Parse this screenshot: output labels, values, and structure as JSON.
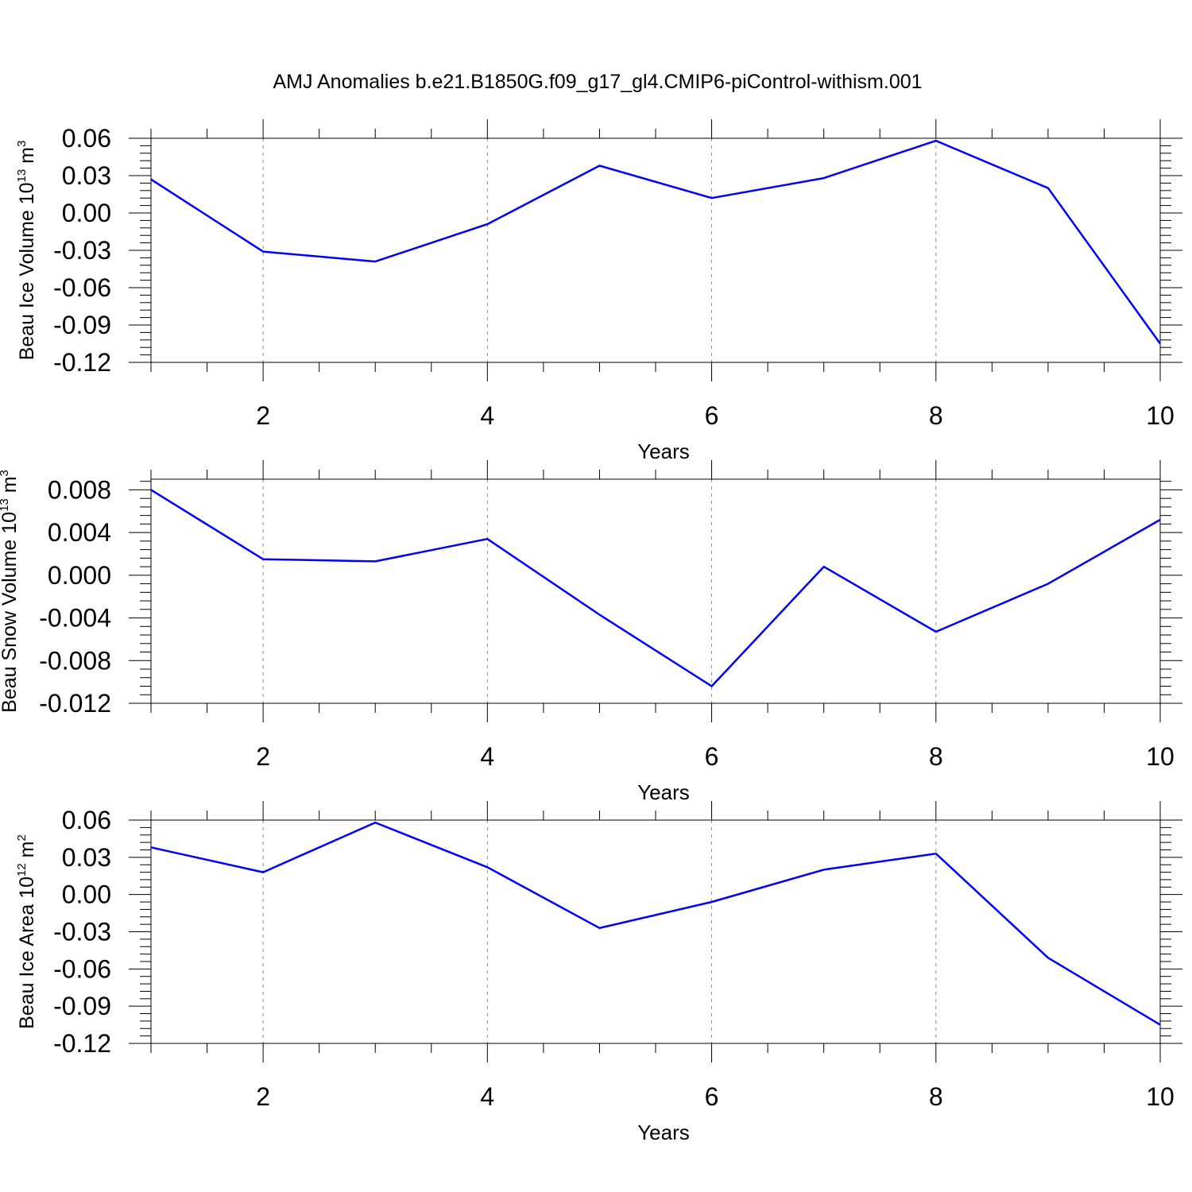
{
  "page": {
    "title": "AMJ Anomalies b.e21.B1850G.f09_g17_gl4.CMIP6-piControl-withism.001"
  },
  "colors": {
    "line": "#0000ff",
    "axis": "#000000",
    "grid": "#888888"
  },
  "chart_data": [
    {
      "type": "line",
      "xlabel": "Years",
      "ylabel": {
        "main": "Beau Ice Volume 10",
        "exp": "13",
        "unit": " m",
        "unit_exp": "3"
      },
      "xlim": [
        1,
        10
      ],
      "ylim": [
        -0.12,
        0.06
      ],
      "xticks": [
        2,
        4,
        6,
        8,
        10
      ],
      "yticks": [
        0.06,
        0.03,
        0.0,
        -0.03,
        -0.06,
        -0.09,
        -0.12
      ],
      "ytick_labels": [
        "0.06",
        "0.03",
        "0.00",
        "-0.03",
        "-0.06",
        "-0.09",
        "-0.12"
      ],
      "grid": "vertical dashed at major x ticks",
      "x": [
        1,
        2,
        3,
        4,
        5,
        6,
        7,
        8,
        9,
        10
      ],
      "values": [
        0.027,
        -0.031,
        -0.039,
        -0.009,
        0.038,
        0.012,
        0.028,
        0.058,
        0.02,
        -0.105
      ]
    },
    {
      "type": "line",
      "xlabel": "Years",
      "ylabel": {
        "main": "Beau Snow Volume 10",
        "exp": "13",
        "unit": " m",
        "unit_exp": "3"
      },
      "xlim": [
        1,
        10
      ],
      "ylim": [
        -0.012,
        0.009
      ],
      "xticks": [
        2,
        4,
        6,
        8,
        10
      ],
      "yticks": [
        0.008,
        0.004,
        0.0,
        -0.004,
        -0.008,
        -0.012
      ],
      "ytick_labels": [
        "0.008",
        "0.004",
        "0.000",
        "-0.004",
        "-0.008",
        "-0.012"
      ],
      "grid": "vertical dashed at major x ticks",
      "x": [
        1,
        2,
        3,
        4,
        5,
        6,
        7,
        8,
        9,
        10
      ],
      "values": [
        0.008,
        0.0015,
        0.0013,
        0.0034,
        -0.0037,
        -0.0104,
        0.0008,
        -0.0053,
        -0.0008,
        0.0052
      ]
    },
    {
      "type": "line",
      "xlabel": "Years",
      "ylabel": {
        "main": "Beau Ice Area 10",
        "exp": "12",
        "unit": " m",
        "unit_exp": "2"
      },
      "xlim": [
        1,
        10
      ],
      "ylim": [
        -0.12,
        0.06
      ],
      "xticks": [
        2,
        4,
        6,
        8,
        10
      ],
      "yticks": [
        0.06,
        0.03,
        0.0,
        -0.03,
        -0.06,
        -0.09,
        -0.12
      ],
      "ytick_labels": [
        "0.06",
        "0.03",
        "0.00",
        "-0.03",
        "-0.06",
        "-0.09",
        "-0.12"
      ],
      "grid": "vertical dashed at major x ticks",
      "x": [
        1,
        2,
        3,
        4,
        5,
        6,
        7,
        8,
        9,
        10
      ],
      "values": [
        0.038,
        0.018,
        0.058,
        0.022,
        -0.027,
        -0.006,
        0.02,
        0.033,
        -0.051,
        -0.105
      ]
    }
  ]
}
